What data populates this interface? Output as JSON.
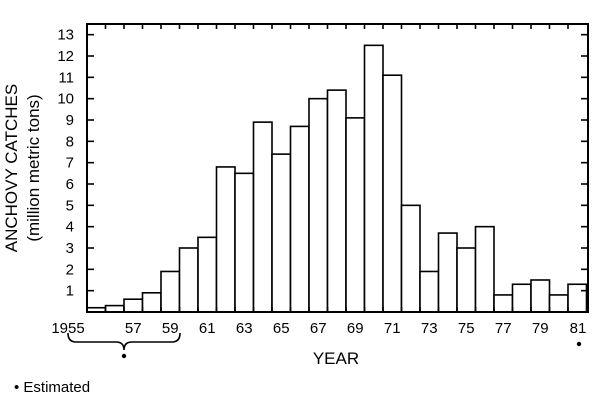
{
  "chart_data": {
    "type": "bar",
    "xlabel": "YEAR",
    "ylabel_line1": "ANCHOVY CATCHES",
    "ylabel_line2": "(million metric tons)",
    "ylim": [
      0,
      13.5
    ],
    "yticks": [
      1,
      2,
      3,
      4,
      5,
      6,
      7,
      8,
      9,
      10,
      11,
      12,
      13
    ],
    "categories": [
      "1955",
      "1956",
      "1957",
      "1958",
      "1959",
      "1960",
      "1961",
      "1962",
      "1963",
      "1964",
      "1965",
      "1966",
      "1967",
      "1968",
      "1969",
      "1970",
      "1971",
      "1972",
      "1973",
      "1974",
      "1975",
      "1976",
      "1977",
      "1978",
      "1979",
      "1980",
      "1981"
    ],
    "values": [
      0.2,
      0.3,
      0.6,
      0.9,
      1.9,
      3.0,
      3.5,
      6.8,
      6.5,
      8.9,
      7.4,
      8.7,
      10.0,
      10.4,
      9.1,
      12.5,
      11.1,
      5.0,
      1.9,
      3.7,
      3.0,
      4.0,
      0.8,
      1.3,
      1.5,
      0.8,
      1.3
    ],
    "xtick_labels": [
      {
        "category": "1955",
        "text": "1955"
      },
      {
        "category": "1957",
        "text": "57"
      },
      {
        "category": "1959",
        "text": "59"
      },
      {
        "category": "1961",
        "text": "61"
      },
      {
        "category": "1963",
        "text": "63"
      },
      {
        "category": "1965",
        "text": "65"
      },
      {
        "category": "1967",
        "text": "67"
      },
      {
        "category": "1969",
        "text": "69"
      },
      {
        "category": "1971",
        "text": "71"
      },
      {
        "category": "1973",
        "text": "73"
      },
      {
        "category": "1975",
        "text": "75"
      },
      {
        "category": "1977",
        "text": "77"
      },
      {
        "category": "1979",
        "text": "79"
      },
      {
        "category": "1981",
        "text": "81"
      }
    ],
    "estimated_years": [
      "1955",
      "1956",
      "1957",
      "1958",
      "1959",
      "1981"
    ],
    "legend_note": "• Estimated"
  }
}
